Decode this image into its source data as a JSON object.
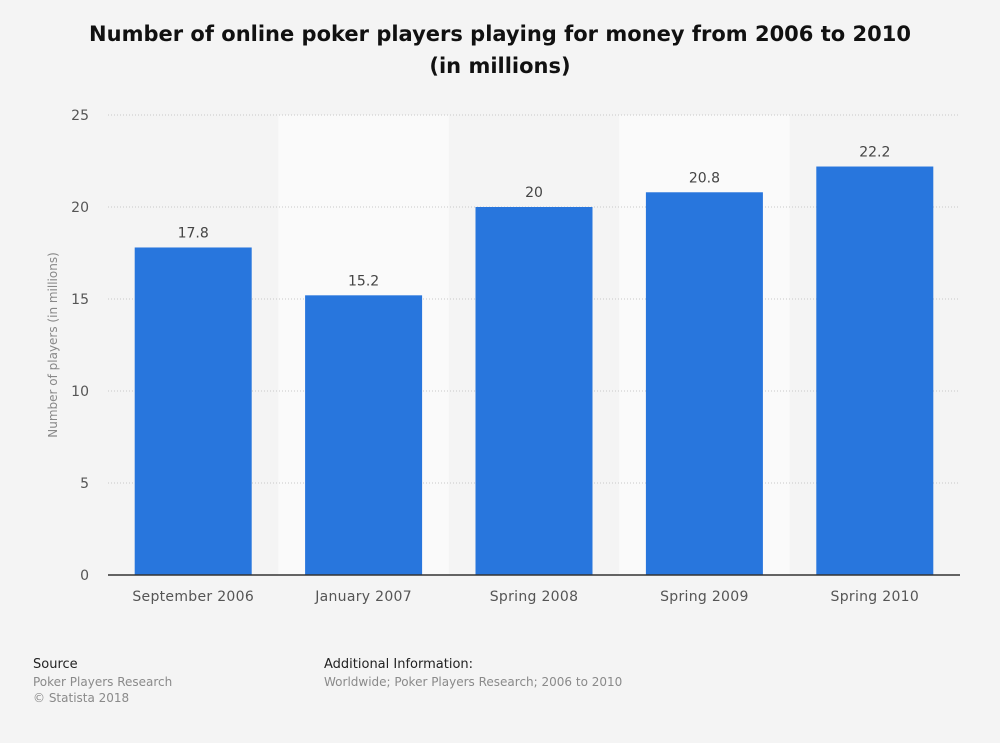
{
  "chart_data": {
    "type": "bar",
    "title_line1": "Number of online poker players playing for money from 2006 to 2010",
    "title_line2": "(in millions)",
    "xlabel": "",
    "ylabel": "Number of players (in millions)",
    "categories": [
      "September 2006",
      "January 2007",
      "Spring 2008",
      "Spring 2009",
      "Spring 2010"
    ],
    "values": [
      17.8,
      15.2,
      20,
      20.8,
      22.2
    ],
    "value_labels": [
      "17.8",
      "15.2",
      "20",
      "20.8",
      "22.2"
    ],
    "ylim": [
      0,
      25
    ],
    "yticks": [
      0,
      5,
      10,
      15,
      20,
      25
    ],
    "grid": true,
    "bar_color": "#2876dd"
  },
  "footer": {
    "source_label": "Source",
    "source_text": "Poker Players Research",
    "copyright": "© Statista 2018",
    "info_label": "Additional Information:",
    "info_text": "Worldwide; Poker Players Research; 2006 to 2010"
  }
}
